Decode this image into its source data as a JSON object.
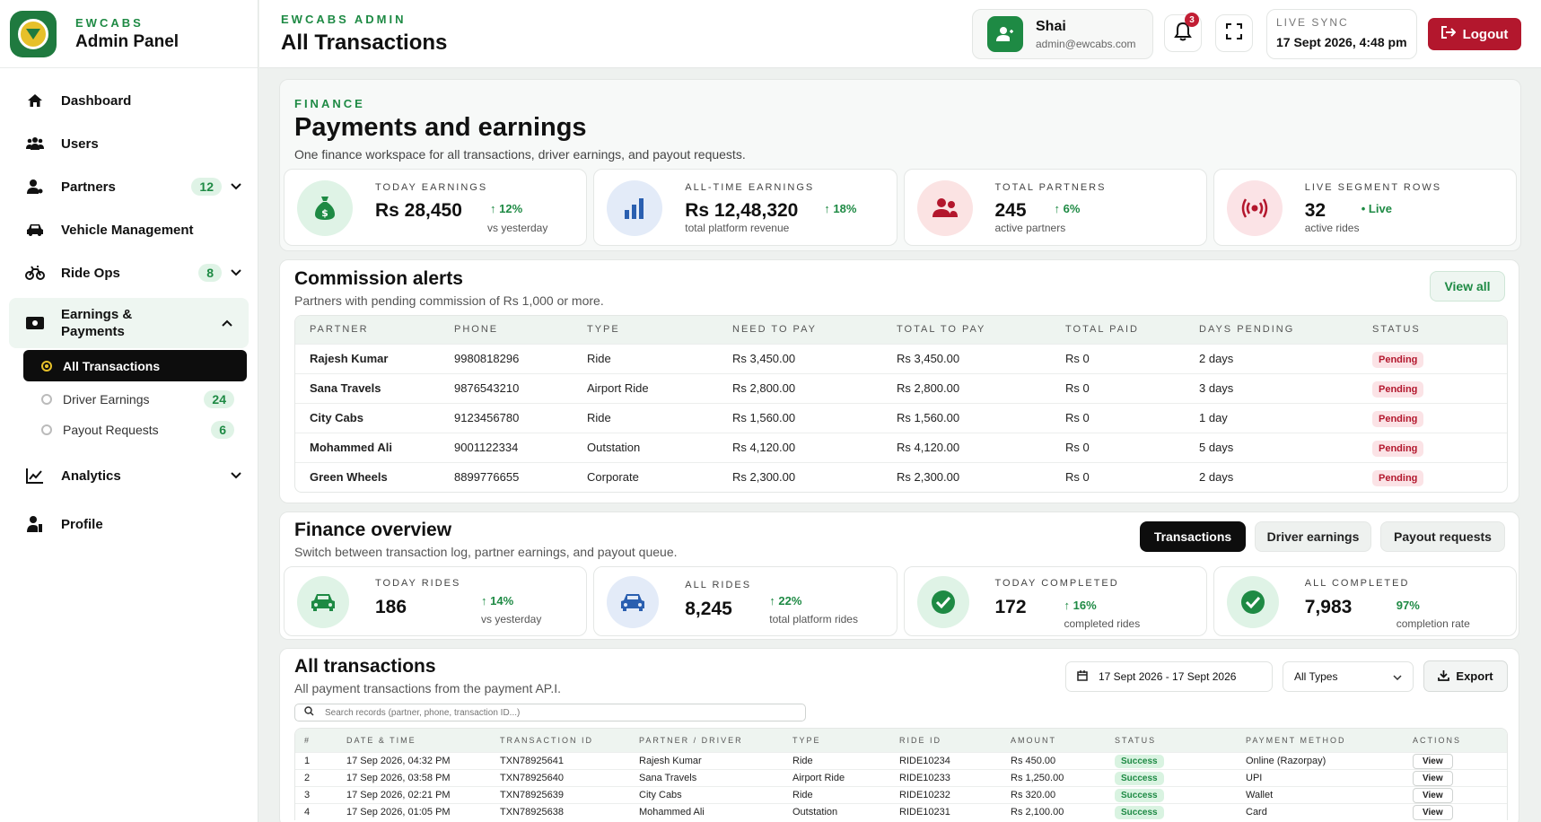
{
  "sidebar": {
    "brand_small": "EWCABS",
    "brand_title": "Admin Panel",
    "items": [
      {
        "label": "Dashboard"
      },
      {
        "label": "Users"
      },
      {
        "label": "Partners",
        "badge": "12"
      },
      {
        "label": "Vehicle Management"
      },
      {
        "label": "Ride Ops",
        "badge": "8"
      },
      {
        "label": "Earnings &",
        "label2": "Payments"
      },
      {
        "label": "Analytics"
      },
      {
        "label": "Profile"
      }
    ],
    "sub_items": [
      {
        "label": "All Transactions"
      },
      {
        "label": "Driver Earnings",
        "badge": "24"
      },
      {
        "label": "Payout Requests",
        "badge": "6"
      }
    ]
  },
  "header": {
    "small": "EWCABS ADMIN",
    "title": "All Transactions",
    "user_name": "Shai",
    "user_email": "admin@ewcabs.com",
    "notif_count": "3",
    "sync_label": "LIVE SYNC",
    "sync_time": "17 Sept 2026, 4:48 pm",
    "logout_label": "Logout"
  },
  "finance": {
    "eyebrow": "FINANCE",
    "title": "Payments and earnings",
    "subtitle": "One finance workspace for all transactions, driver earnings, and payout requests.",
    "kpis": [
      {
        "label": "TODAY EARNINGS",
        "value": "Rs 28,450",
        "delta": "↑ 12%",
        "sub": "vs yesterday",
        "icon": "money-bag-icon",
        "bg": "#dff3e6",
        "fg": "#1e8a44"
      },
      {
        "label": "ALL-TIME EARNINGS",
        "value": "Rs 12,48,320",
        "delta": "↑ 18%",
        "sub": "total platform revenue",
        "icon": "bar-chart-icon",
        "bg": "#e3ebf8",
        "fg": "#2a5fb0"
      },
      {
        "label": "TOTAL PARTNERS",
        "value": "245",
        "delta": "↑ 6%",
        "sub": "active partners",
        "icon": "partners-icon",
        "bg": "#fbe3e3",
        "fg": "#b3172d"
      },
      {
        "label": "LIVE SEGMENT ROWS",
        "value": "32",
        "delta": "• Live",
        "sub": "active rides",
        "icon": "broadcast-icon",
        "bg": "#fbe3e6",
        "fg": "#b3172d"
      }
    ]
  },
  "commission": {
    "title": "Commission alerts",
    "subtitle": "Partners with pending commission of Rs 1,000 or more.",
    "view_all": "View all",
    "columns": [
      "PARTNER",
      "PHONE",
      "TYPE",
      "NEED TO PAY",
      "TOTAL TO PAY",
      "TOTAL PAID",
      "DAYS PENDING",
      "STATUS"
    ],
    "rows": [
      [
        "Rajesh Kumar",
        "9980818296",
        "Ride",
        "Rs 3,450.00",
        "Rs 3,450.00",
        "Rs 0",
        "2 days",
        "Pending"
      ],
      [
        "Sana Travels",
        "9876543210",
        "Airport Ride",
        "Rs 2,800.00",
        "Rs 2,800.00",
        "Rs 0",
        "3 days",
        "Pending"
      ],
      [
        "City Cabs",
        "9123456780",
        "Ride",
        "Rs 1,560.00",
        "Rs 1,560.00",
        "Rs 0",
        "1 day",
        "Pending"
      ],
      [
        "Mohammed Ali",
        "9001122334",
        "Outstation",
        "Rs 4,120.00",
        "Rs 4,120.00",
        "Rs 0",
        "5 days",
        "Pending"
      ],
      [
        "Green Wheels",
        "8899776655",
        "Corporate",
        "Rs 2,300.00",
        "Rs 2,300.00",
        "Rs 0",
        "2 days",
        "Pending"
      ]
    ]
  },
  "overview": {
    "title": "Finance overview",
    "subtitle": "Switch between transaction log, partner earnings, and payout queue.",
    "tabs": [
      "Transactions",
      "Driver earnings",
      "Payout requests"
    ],
    "kpis": [
      {
        "label": "TODAY RIDES",
        "value": "186",
        "delta": "↑ 14%",
        "sub": "vs yesterday",
        "icon": "car-icon",
        "bg": "#dff3e6",
        "fg": "#1e8a44"
      },
      {
        "label": "ALL RIDES",
        "value": "8,245",
        "delta": "↑ 22%",
        "sub": "total platform rides",
        "icon": "car-icon",
        "bg": "#e3ebf8",
        "fg": "#2a5fb0"
      },
      {
        "label": "TODAY COMPLETED",
        "value": "172",
        "delta": "↑ 16%",
        "sub": "completed rides",
        "icon": "check-circle-icon",
        "bg": "#dff3e6",
        "fg": "#1e8a44"
      },
      {
        "label": "ALL COMPLETED",
        "value": "7,983",
        "delta": "97%",
        "sub": "completion rate",
        "icon": "check-circle-icon",
        "bg": "#dff3e6",
        "fg": "#1e8a44"
      }
    ]
  },
  "transactions": {
    "title": "All transactions",
    "subtitle": "All payment transactions from the payment AP.I.",
    "date_range": "17 Sept 2026 - 17 Sept 2026",
    "type_filter": "All Types",
    "export_label": "Export",
    "search_placeholder": "Search records (partner, phone, transaction ID...)",
    "columns": [
      "#",
      "DATE & TIME",
      "TRANSACTION ID",
      "PARTNER / DRIVER",
      "TYPE",
      "RIDE ID",
      "AMOUNT",
      "STATUS",
      "PAYMENT METHOD",
      "ACTIONS"
    ],
    "rows": [
      [
        "1",
        "17 Sep 2026, 04:32 PM",
        "TXN78925641",
        "Rajesh Kumar",
        "Ride",
        "RIDE10234",
        "Rs 450.00",
        "Success",
        "Online (Razorpay)",
        "View"
      ],
      [
        "2",
        "17 Sep 2026, 03:58 PM",
        "TXN78925640",
        "Sana Travels",
        "Airport Ride",
        "RIDE10233",
        "Rs 1,250.00",
        "Success",
        "UPI",
        "View"
      ],
      [
        "3",
        "17 Sep 2026, 02:21 PM",
        "TXN78925639",
        "City Cabs",
        "Ride",
        "RIDE10232",
        "Rs 320.00",
        "Success",
        "Wallet",
        "View"
      ],
      [
        "4",
        "17 Sep 2026, 01:05 PM",
        "TXN78925638",
        "Mohammed Ali",
        "Outstation",
        "RIDE10231",
        "Rs 2,100.00",
        "Success",
        "Card",
        "View"
      ]
    ]
  }
}
